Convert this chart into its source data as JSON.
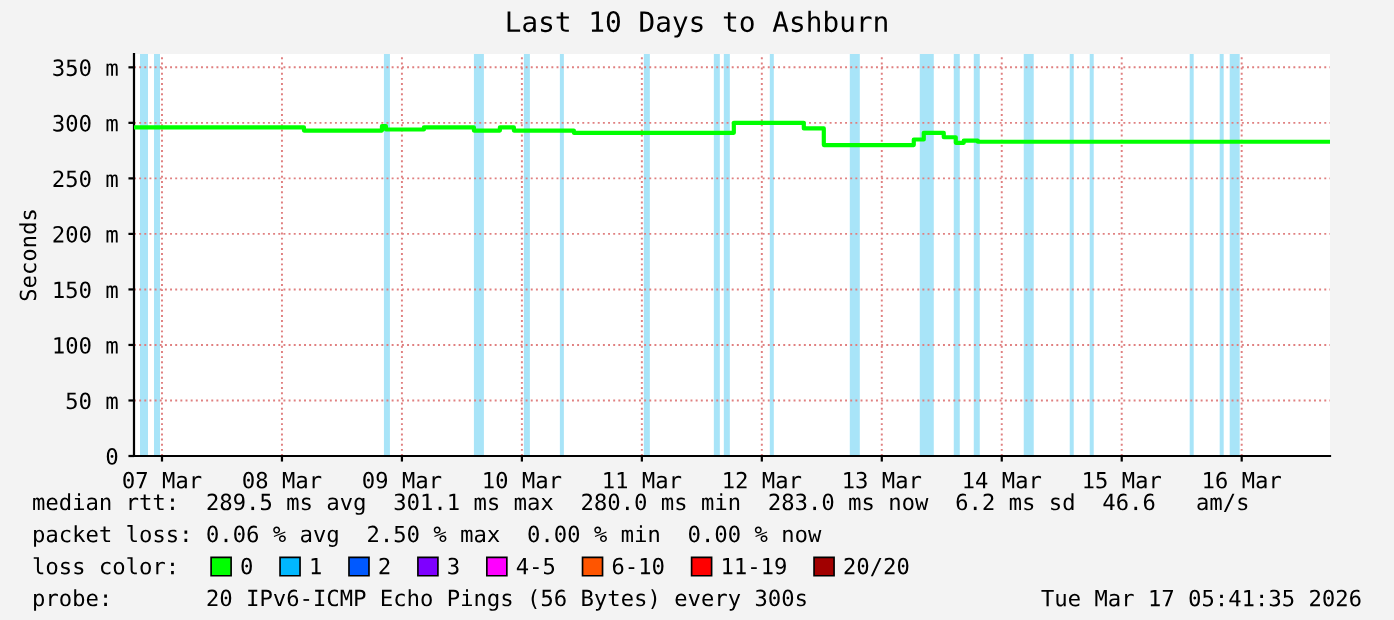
{
  "chart_data": {
    "type": "step",
    "title": "Last 10 Days to Ashburn",
    "ylabel": "Seconds",
    "xlim": [
      "2026-03-07T06:24",
      "2026-03-17T05:40"
    ],
    "xticks": [
      {
        "value": "2026-03-07T12:00",
        "label": "07 Mar"
      },
      {
        "value": "2026-03-08T12:00",
        "label": "08 Mar"
      },
      {
        "value": "2026-03-09T12:00",
        "label": "09 Mar"
      },
      {
        "value": "2026-03-10T12:00",
        "label": "10 Mar"
      },
      {
        "value": "2026-03-11T12:00",
        "label": "11 Mar"
      },
      {
        "value": "2026-03-12T12:00",
        "label": "12 Mar"
      },
      {
        "value": "2026-03-13T12:00",
        "label": "13 Mar"
      },
      {
        "value": "2026-03-14T12:00",
        "label": "14 Mar"
      },
      {
        "value": "2026-03-15T12:00",
        "label": "15 Mar"
      },
      {
        "value": "2026-03-16T12:00",
        "label": "16 Mar"
      }
    ],
    "ylim": [
      0,
      362
    ],
    "yticks": [
      0,
      {
        "value": 50,
        "label": "50 m"
      },
      {
        "value": 100,
        "label": "100 m"
      },
      {
        "value": 150,
        "label": "150 m"
      },
      {
        "value": 200,
        "label": "200 m"
      },
      {
        "value": 250,
        "label": "250 m"
      },
      {
        "value": 300,
        "label": "300 m"
      },
      {
        "value": 350,
        "label": "350 m"
      }
    ],
    "grid": true,
    "legend": "bottom",
    "legend_title": "loss color:",
    "series": [
      {
        "name": "0",
        "color": "#00ff00",
        "x": [
          "2026-03-07T06:24",
          "2026-03-08T16:24",
          "2026-03-09T08:00",
          "2026-03-09T08:48",
          "2026-03-09T16:24",
          "2026-03-10T02:24",
          "2026-03-10T07:36",
          "2026-03-10T10:24",
          "2026-03-10T22:24",
          "2026-03-12T06:24",
          "2026-03-12T20:24",
          "2026-03-13T00:24",
          "2026-03-13T18:24",
          "2026-03-13T20:24",
          "2026-03-14T00:24",
          "2026-03-14T02:48",
          "2026-03-14T04:24",
          "2026-03-14T07:12",
          "2026-03-17T05:36"
        ],
        "values": [
          296,
          293,
          297,
          294,
          296,
          293,
          296,
          293,
          291,
          300,
          295,
          280,
          285,
          291,
          287,
          282,
          284,
          283,
          283
        ]
      },
      {
        "name": "1",
        "color": "#00b8ff",
        "values": [
          null
        ]
      },
      {
        "name": "2",
        "color": "#0059ff",
        "values": [
          null
        ]
      },
      {
        "name": "3",
        "color": "#7e00ff",
        "values": [
          null
        ]
      },
      {
        "name": "4-5",
        "color": "#ff00ff",
        "values": [
          null
        ]
      },
      {
        "name": "6-10",
        "color": "#ff5500",
        "values": [
          null
        ]
      },
      {
        "name": "11-19",
        "color": "#ff0000",
        "values": [
          null
        ]
      },
      {
        "name": "20/20",
        "color": "#a10000",
        "values": [
          null
        ]
      }
    ],
    "bands": [
      {
        "axis": "x",
        "from": "2026-03-07T07:36",
        "to": "2026-03-07T09:12",
        "color": "#a8e4f8"
      },
      {
        "axis": "x",
        "from": "2026-03-07T10:24",
        "to": "2026-03-07T11:36",
        "color": "#a8e4f8"
      },
      {
        "axis": "x",
        "from": "2026-03-09T08:24",
        "to": "2026-03-09T09:36",
        "color": "#a8e4f8"
      },
      {
        "axis": "x",
        "from": "2026-03-10T02:24",
        "to": "2026-03-10T04:24",
        "color": "#a8e4f8"
      },
      {
        "axis": "x",
        "from": "2026-03-10T12:24",
        "to": "2026-03-10T13:36",
        "color": "#a8e4f8"
      },
      {
        "axis": "x",
        "from": "2026-03-10T19:36",
        "to": "2026-03-10T20:24",
        "color": "#a8e4f8"
      },
      {
        "axis": "x",
        "from": "2026-03-11T12:24",
        "to": "2026-03-11T13:36",
        "color": "#a8e4f8"
      },
      {
        "axis": "x",
        "from": "2026-03-12T02:24",
        "to": "2026-03-12T03:36",
        "color": "#a8e4f8"
      },
      {
        "axis": "x",
        "from": "2026-03-12T04:24",
        "to": "2026-03-12T05:36",
        "color": "#a8e4f8"
      },
      {
        "axis": "x",
        "from": "2026-03-12T13:36",
        "to": "2026-03-12T14:24",
        "color": "#a8e4f8"
      },
      {
        "axis": "x",
        "from": "2026-03-13T05:36",
        "to": "2026-03-13T07:36",
        "color": "#a8e4f8"
      },
      {
        "axis": "x",
        "from": "2026-03-13T19:36",
        "to": "2026-03-13T22:24",
        "color": "#a8e4f8"
      },
      {
        "axis": "x",
        "from": "2026-03-14T02:24",
        "to": "2026-03-14T03:36",
        "color": "#a8e4f8"
      },
      {
        "axis": "x",
        "from": "2026-03-14T06:24",
        "to": "2026-03-14T07:36",
        "color": "#a8e4f8"
      },
      {
        "axis": "x",
        "from": "2026-03-14T16:24",
        "to": "2026-03-14T18:24",
        "color": "#a8e4f8"
      },
      {
        "axis": "x",
        "from": "2026-03-15T01:36",
        "to": "2026-03-15T02:24",
        "color": "#a8e4f8"
      },
      {
        "axis": "x",
        "from": "2026-03-15T05:36",
        "to": "2026-03-15T06:24",
        "color": "#a8e4f8"
      },
      {
        "axis": "x",
        "from": "2026-03-16T01:36",
        "to": "2026-03-16T02:24",
        "color": "#a8e4f8"
      },
      {
        "axis": "x",
        "from": "2026-03-16T07:36",
        "to": "2026-03-16T08:24",
        "color": "#a8e4f8"
      },
      {
        "axis": "x",
        "from": "2026-03-16T09:36",
        "to": "2026-03-16T11:36",
        "color": "#a8e4f8"
      }
    ],
    "annotations": [
      "median rtt:  289.5 ms avg  301.1 ms max  280.0 ms min  283.0 ms now  6.2 ms sd  46.6   am/s",
      "packet loss: 0.06 % avg  2.50 % max  0.00 % min  0.00 % now",
      "probe:       20 IPv6-ICMP Echo Pings (56 Bytes) every 300s",
      "Tue Mar 17 05:41:35 2026"
    ]
  }
}
